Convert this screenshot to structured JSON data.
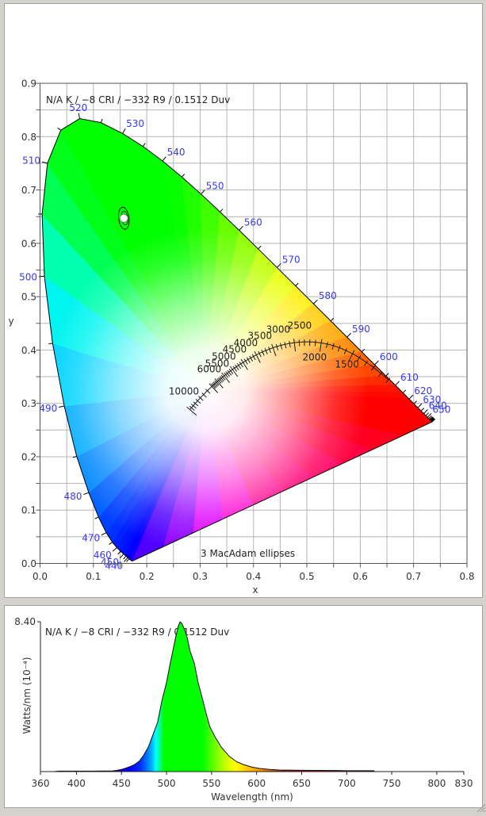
{
  "cie_panel": {
    "annotation": "N/A K / −8 CRI / −332 R9 / 0.1512 Duv",
    "x_axis_label": "x",
    "y_axis_label": "y",
    "ellipse_note": "3  MacAdam ellipses"
  },
  "spd_panel": {
    "annotation": "N/A K / −8 CRI / −332 R9 / 0.1512 Duv",
    "y_axis_label": "Watts/nm (10⁻⁴)",
    "x_axis_label": "Wavelength (nm)",
    "y_max_label": "8.40"
  },
  "colors": {
    "background": "#d4d2cc",
    "panel": "#ffffff",
    "grid": "#b5b5b5",
    "axis": "#555555",
    "wavelength_label": "#3838f0",
    "text": "#222222"
  },
  "chart_data": [
    {
      "type": "scatter",
      "annotation": "N/A K / −8 CRI / −332 R9 / 0.1512 Duv",
      "xlabel": "x",
      "ylabel": "y",
      "xlim": [
        0,
        0.8
      ],
      "ylim": [
        0,
        0.9
      ],
      "xticks": [
        "0.0",
        "0.1",
        "0.2",
        "0.3",
        "0.4",
        "0.5",
        "0.6",
        "0.7",
        "0.8"
      ],
      "yticks": [
        "0.0",
        "0.1",
        "0.2",
        "0.3",
        "0.4",
        "0.5",
        "0.6",
        "0.7",
        "0.8",
        "0.9"
      ],
      "grid": true,
      "grid_step": 0.05,
      "points": [
        {
          "x": 0.157,
          "y": 0.647
        }
      ],
      "macadam_ellipse": {
        "steps": 3,
        "label": "3  MacAdam ellipses",
        "center": [
          0.157,
          0.647
        ],
        "semi_axes": [
          0.0097,
          0.0208
        ],
        "angle_deg": -7.5
      },
      "white_point": [
        0.31,
        0.325
      ],
      "spectral_labels": [
        440,
        450,
        460,
        470,
        480,
        490,
        500,
        510,
        520,
        530,
        540,
        550,
        560,
        570,
        580,
        590,
        600,
        610,
        620,
        630,
        640,
        650
      ],
      "spectral_tick_range_nm": [
        435,
        700
      ],
      "purple_line_colors": [
        "#ff0000",
        "#ff0020",
        "#ff0040",
        "#ff0060",
        "#ff0078",
        "#ff0090",
        "#ff00d0",
        "#e000ff",
        "#9000ff",
        "#5000ff",
        "#3000ff"
      ],
      "spectral_locus": [
        {
          "nm": 380,
          "x": 0.1741,
          "y": 0.005,
          "color": "#3000ff"
        },
        {
          "nm": 385,
          "x": 0.174,
          "y": 0.005,
          "color": "#2c00ff"
        },
        {
          "nm": 390,
          "x": 0.1738,
          "y": 0.0049,
          "color": "#2800ff"
        },
        {
          "nm": 395,
          "x": 0.1736,
          "y": 0.0049,
          "color": "#2400ff"
        },
        {
          "nm": 400,
          "x": 0.1733,
          "y": 0.0048,
          "color": "#2000ff"
        },
        {
          "nm": 405,
          "x": 0.173,
          "y": 0.0048,
          "color": "#1c00ff"
        },
        {
          "nm": 410,
          "x": 0.1726,
          "y": 0.0048,
          "color": "#1800ff"
        },
        {
          "nm": 415,
          "x": 0.1721,
          "y": 0.0048,
          "color": "#1400ff"
        },
        {
          "nm": 420,
          "x": 0.1714,
          "y": 0.0051,
          "color": "#1000ff"
        },
        {
          "nm": 425,
          "x": 0.1703,
          "y": 0.0058,
          "color": "#0c00ff"
        },
        {
          "nm": 430,
          "x": 0.1689,
          "y": 0.0069,
          "color": "#0800ff"
        },
        {
          "nm": 435,
          "x": 0.1669,
          "y": 0.0086,
          "color": "#0400ff"
        },
        {
          "nm": 440,
          "x": 0.1644,
          "y": 0.0109,
          "color": "#0000ff"
        },
        {
          "nm": 445,
          "x": 0.1611,
          "y": 0.0138,
          "color": "#0008ff"
        },
        {
          "nm": 450,
          "x": 0.1566,
          "y": 0.0177,
          "color": "#0010ff"
        },
        {
          "nm": 455,
          "x": 0.151,
          "y": 0.0227,
          "color": "#0018ff"
        },
        {
          "nm": 460,
          "x": 0.144,
          "y": 0.0297,
          "color": "#0020ff"
        },
        {
          "nm": 465,
          "x": 0.1355,
          "y": 0.0399,
          "color": "#0030ff"
        },
        {
          "nm": 470,
          "x": 0.1241,
          "y": 0.0578,
          "color": "#0040ff"
        },
        {
          "nm": 475,
          "x": 0.1096,
          "y": 0.0868,
          "color": "#0060ff"
        },
        {
          "nm": 480,
          "x": 0.0913,
          "y": 0.1327,
          "color": "#0088ff"
        },
        {
          "nm": 485,
          "x": 0.0687,
          "y": 0.2007,
          "color": "#00acff"
        },
        {
          "nm": 490,
          "x": 0.0454,
          "y": 0.295,
          "color": "#00d4ff"
        },
        {
          "nm": 495,
          "x": 0.0235,
          "y": 0.4127,
          "color": "#00f4f0"
        },
        {
          "nm": 500,
          "x": 0.0082,
          "y": 0.5384,
          "color": "#00ffb0"
        },
        {
          "nm": 505,
          "x": 0.0039,
          "y": 0.6548,
          "color": "#00ff50"
        },
        {
          "nm": 510,
          "x": 0.0139,
          "y": 0.7502,
          "color": "#00ff18"
        },
        {
          "nm": 515,
          "x": 0.0389,
          "y": 0.812,
          "color": "#00ff00"
        },
        {
          "nm": 520,
          "x": 0.0743,
          "y": 0.8338,
          "color": "#00ff00"
        },
        {
          "nm": 525,
          "x": 0.1142,
          "y": 0.8262,
          "color": "#00ff00"
        },
        {
          "nm": 530,
          "x": 0.1547,
          "y": 0.8059,
          "color": "#00ff00"
        },
        {
          "nm": 535,
          "x": 0.1929,
          "y": 0.7816,
          "color": "#00ff00"
        },
        {
          "nm": 540,
          "x": 0.2296,
          "y": 0.7543,
          "color": "#08ff00"
        },
        {
          "nm": 545,
          "x": 0.2658,
          "y": 0.7243,
          "color": "#20ff00"
        },
        {
          "nm": 550,
          "x": 0.3016,
          "y": 0.6923,
          "color": "#40ff00"
        },
        {
          "nm": 555,
          "x": 0.3373,
          "y": 0.6589,
          "color": "#68ff00"
        },
        {
          "nm": 560,
          "x": 0.3731,
          "y": 0.6245,
          "color": "#90ff00"
        },
        {
          "nm": 565,
          "x": 0.4087,
          "y": 0.5896,
          "color": "#c0ff00"
        },
        {
          "nm": 570,
          "x": 0.4441,
          "y": 0.5547,
          "color": "#e8ff00"
        },
        {
          "nm": 575,
          "x": 0.4788,
          "y": 0.5202,
          "color": "#ffee00"
        },
        {
          "nm": 580,
          "x": 0.5125,
          "y": 0.4866,
          "color": "#ffcc00"
        },
        {
          "nm": 585,
          "x": 0.5448,
          "y": 0.4544,
          "color": "#ffa800"
        },
        {
          "nm": 590,
          "x": 0.5752,
          "y": 0.4242,
          "color": "#ff8800"
        },
        {
          "nm": 595,
          "x": 0.6029,
          "y": 0.3965,
          "color": "#ff6600"
        },
        {
          "nm": 600,
          "x": 0.627,
          "y": 0.3725,
          "color": "#ff4800"
        },
        {
          "nm": 605,
          "x": 0.6482,
          "y": 0.3514,
          "color": "#ff2c00"
        },
        {
          "nm": 610,
          "x": 0.6658,
          "y": 0.334,
          "color": "#ff1400"
        },
        {
          "nm": 615,
          "x": 0.6801,
          "y": 0.3197,
          "color": "#ff0800"
        },
        {
          "nm": 620,
          "x": 0.6915,
          "y": 0.3083,
          "color": "#ff0000"
        },
        {
          "nm": 625,
          "x": 0.7006,
          "y": 0.2993,
          "color": "#ff0000"
        },
        {
          "nm": 630,
          "x": 0.7079,
          "y": 0.292,
          "color": "#ff0000"
        },
        {
          "nm": 635,
          "x": 0.714,
          "y": 0.2859,
          "color": "#ff0000"
        },
        {
          "nm": 640,
          "x": 0.719,
          "y": 0.2809,
          "color": "#ff0000"
        },
        {
          "nm": 645,
          "x": 0.723,
          "y": 0.277,
          "color": "#ff0000"
        },
        {
          "nm": 650,
          "x": 0.726,
          "y": 0.274,
          "color": "#ff0000"
        },
        {
          "nm": 655,
          "x": 0.7283,
          "y": 0.2717,
          "color": "#ff0000"
        },
        {
          "nm": 660,
          "x": 0.73,
          "y": 0.27,
          "color": "#ff0000"
        },
        {
          "nm": 665,
          "x": 0.7311,
          "y": 0.2689,
          "color": "#ff0000"
        },
        {
          "nm": 670,
          "x": 0.732,
          "y": 0.268,
          "color": "#ff0000"
        },
        {
          "nm": 675,
          "x": 0.7327,
          "y": 0.2673,
          "color": "#ff0000"
        },
        {
          "nm": 680,
          "x": 0.7334,
          "y": 0.2666,
          "color": "#ff0000"
        },
        {
          "nm": 685,
          "x": 0.734,
          "y": 0.266,
          "color": "#ff0000"
        },
        {
          "nm": 690,
          "x": 0.7344,
          "y": 0.2656,
          "color": "#ff0000"
        },
        {
          "nm": 695,
          "x": 0.7346,
          "y": 0.2654,
          "color": "#ff0000"
        },
        {
          "nm": 700,
          "x": 0.7347,
          "y": 0.2653,
          "color": "#ff0000"
        }
      ],
      "planckian_locus": {
        "range_K": [
          1000,
          10000
        ],
        "tick_steps": [
          {
            "from": 1000,
            "to": 6000,
            "step": 100
          },
          {
            "from": 6500,
            "to": 10000,
            "step": 500
          }
        ],
        "anchor_points": [
          {
            "T": 1000,
            "x": 0.6528,
            "y": 0.3444
          },
          {
            "T": 1200,
            "x": 0.6251,
            "y": 0.3674
          },
          {
            "T": 1400,
            "x": 0.5985,
            "y": 0.3858
          },
          {
            "T": 1500,
            "x": 0.5857,
            "y": 0.3931
          }
        ],
        "labels": [
          {
            "T": 10000,
            "text": "10000",
            "x": 0.2807,
            "y": 0.2883,
            "label_at": [
              0.2695,
              0.3233
            ]
          },
          {
            "T": 6000,
            "text": "6000",
            "x": 0.322,
            "y": 0.3318,
            "label_at": [
              0.317,
              0.3649
            ]
          },
          {
            "T": 5500,
            "text": "5500",
            "x": 0.3323,
            "y": 0.341,
            "label_at": [
              0.3318,
              0.3753
            ]
          },
          {
            "T": 5000,
            "text": "5000",
            "x": 0.345,
            "y": 0.3516,
            "label_at": [
              0.3445,
              0.3887
            ]
          },
          {
            "T": 4500,
            "text": "4500",
            "x": 0.3607,
            "y": 0.3635,
            "label_at": [
              0.3645,
              0.4021
            ]
          },
          {
            "T": 4000,
            "text": "4000",
            "x": 0.3805,
            "y": 0.3767,
            "label_at": [
              0.3853,
              0.4139
            ]
          },
          {
            "T": 3500,
            "text": "3500",
            "x": 0.4053,
            "y": 0.3908,
            "label_at": [
              0.412,
              0.4273
            ]
          },
          {
            "T": 3000,
            "text": "3000",
            "x": 0.4366,
            "y": 0.4042,
            "label_at": [
              0.4462,
              0.4392
            ]
          },
          {
            "T": 2500,
            "text": "2500",
            "x": 0.4765,
            "y": 0.4137,
            "label_at": [
              0.4863,
              0.4467
            ]
          },
          {
            "T": 2000,
            "text": "2000",
            "x": 0.5269,
            "y": 0.4133,
            "label_at": [
              0.5145,
              0.3872
            ]
          },
          {
            "T": 1500,
            "text": "1500",
            "x": 0.5857,
            "y": 0.3931,
            "label_at": [
              0.5754,
              0.3738
            ]
          }
        ]
      }
    },
    {
      "type": "area",
      "annotation": "N/A K / −8 CRI / −332 R9 / 0.1512 Duv",
      "xlabel": "Wavelength (nm)",
      "ylabel": "Watts/nm (10⁻⁴)",
      "xlim": [
        360,
        830
      ],
      "ylim": [
        0,
        8.4
      ],
      "xticks": [
        "360",
        "400",
        "450",
        "500",
        "550",
        "600",
        "650",
        "700",
        "750",
        "800",
        "830"
      ],
      "yticks": [
        "8.40"
      ],
      "grid": false,
      "peak": {
        "wavelength_nm": 515,
        "value": 8.4
      },
      "wavelength_nm": [
        375,
        380,
        420,
        440,
        445,
        450,
        455,
        460,
        465,
        470,
        475,
        480,
        485,
        490,
        495,
        500,
        504,
        507,
        510,
        513,
        515,
        517,
        520,
        523,
        526,
        531,
        535,
        540,
        544,
        548,
        554,
        561,
        570,
        578,
        585,
        595,
        603,
        614,
        625,
        650,
        690,
        700,
        730,
        731
      ],
      "values": [
        0,
        0.03,
        0.03,
        0.04,
        0.07,
        0.12,
        0.2,
        0.29,
        0.41,
        0.6,
        0.95,
        1.4,
        2.08,
        2.75,
        4.0,
        5.0,
        6.04,
        6.77,
        7.5,
        8.15,
        8.4,
        8.3,
        7.95,
        7.5,
        6.77,
        6.04,
        5.0,
        4.05,
        3.25,
        2.52,
        1.93,
        1.35,
        0.84,
        0.55,
        0.4,
        0.25,
        0.18,
        0.12,
        0.09,
        0.07,
        0.06,
        0.05,
        0.05,
        0
      ],
      "fill_color_stops": [
        {
          "nm": 375,
          "color": "#3a0050"
        },
        {
          "nm": 435,
          "color": "#3a0070"
        },
        {
          "nm": 448,
          "color": "#1800d0"
        },
        {
          "nm": 458,
          "color": "#0000ff"
        },
        {
          "nm": 470,
          "color": "#0028ff"
        },
        {
          "nm": 478,
          "color": "#0070ff"
        },
        {
          "nm": 484,
          "color": "#00b8ff"
        },
        {
          "nm": 488,
          "color": "#00ffff"
        },
        {
          "nm": 492,
          "color": "#00ffa0"
        },
        {
          "nm": 497,
          "color": "#00ff00"
        },
        {
          "nm": 540,
          "color": "#00ff00"
        },
        {
          "nm": 550,
          "color": "#50ff00"
        },
        {
          "nm": 560,
          "color": "#a0ff00"
        },
        {
          "nm": 570,
          "color": "#e0ff00"
        },
        {
          "nm": 577,
          "color": "#ffff00"
        },
        {
          "nm": 590,
          "color": "#ffc800"
        },
        {
          "nm": 605,
          "color": "#ff9000"
        },
        {
          "nm": 618,
          "color": "#e05000"
        },
        {
          "nm": 630,
          "color": "#c01000"
        },
        {
          "nm": 650,
          "color": "#b00000"
        },
        {
          "nm": 731,
          "color": "#a00000"
        }
      ]
    }
  ]
}
